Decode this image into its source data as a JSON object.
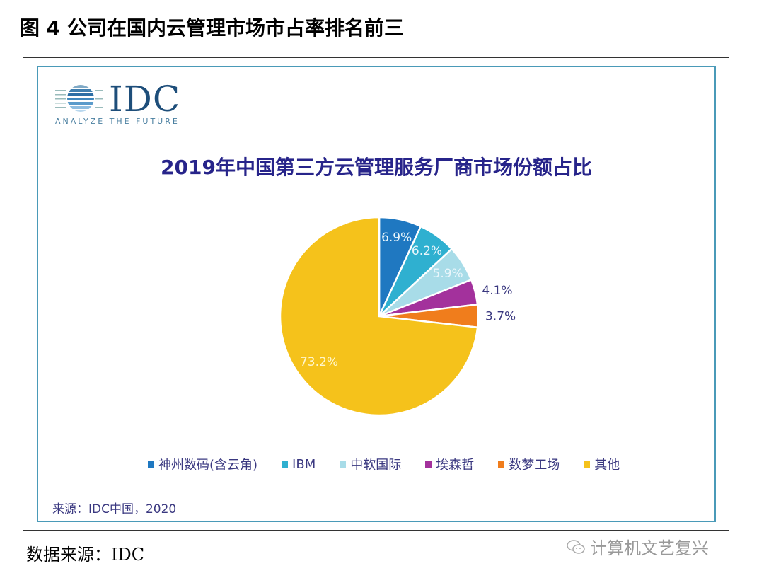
{
  "figure": {
    "title": "图  4 公司在国内云管理市场市占率排名前三",
    "data_source": "数据来源：IDC",
    "watermark": "计算机文艺复兴"
  },
  "chart_box": {
    "logo": {
      "text": "IDC",
      "tagline": "ANALYZE THE FUTURE"
    },
    "source_note": "来源：IDC中国，2020"
  },
  "chart_data": {
    "type": "pie",
    "title": "2019年中国第三方云管理服务厂商市场份额占比",
    "categories": [
      "神州数码(含云角)",
      "IBM",
      "中软国际",
      "埃森哲",
      "数梦工场",
      "其他"
    ],
    "values": [
      6.9,
      6.2,
      5.9,
      4.1,
      3.7,
      73.2
    ],
    "labels": [
      "6.9%",
      "6.2%",
      "5.9%",
      "4.1%",
      "3.7%",
      "73.2%"
    ],
    "colors": [
      "#1f78c1",
      "#2fb0d0",
      "#a8dce8",
      "#a3319c",
      "#f07d1c",
      "#f5c21b"
    ],
    "unit": "%",
    "start_angle": "12 o'clock, clockwise",
    "legend_position": "bottom"
  }
}
